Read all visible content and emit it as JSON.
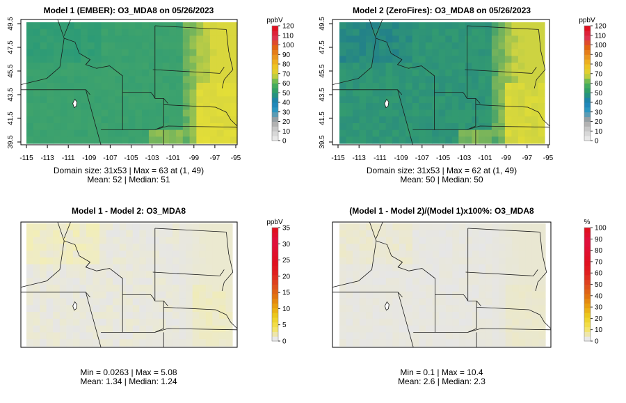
{
  "panels": [
    {
      "title": "Model 1 (EMBER): O3_MDA8 on 05/26/2023",
      "stats_line1": "Domain size: 31x53 | Max = 63 at (1, 49)",
      "stats_line2": "Mean: 52 |  Median: 51",
      "legend_unit": "ppbV",
      "legend_ticks": [
        "0",
        "10",
        "20",
        "30",
        "40",
        "50",
        "60",
        "70",
        "80",
        "90",
        "100",
        "110",
        "120"
      ],
      "x_ticks": [
        "-115",
        "-113",
        "-111",
        "-109",
        "-107",
        "-105",
        "-103",
        "-101",
        "-99",
        "-97",
        "-95"
      ],
      "y_ticks": [
        "39.5",
        "41.5",
        "43.5",
        "45.5",
        "47.5",
        "49.5"
      ],
      "colors": {
        "base": "#3fa36c",
        "north": "#2b9a77",
        "east": "#d9d73d",
        "hot": "#e8e135"
      }
    },
    {
      "title": "Model 2 (ZeroFires): O3_MDA8 on 05/26/2023",
      "stats_line1": "Domain size: 31x53 | Max = 62 at (1, 49)",
      "stats_line2": "Mean: 50 |  Median: 50",
      "legend_unit": "ppbV",
      "legend_ticks": [
        "0",
        "10",
        "20",
        "30",
        "40",
        "50",
        "60",
        "70",
        "80",
        "90",
        "100",
        "110",
        "120"
      ],
      "x_ticks": [
        "-115",
        "-113",
        "-111",
        "-109",
        "-107",
        "-105",
        "-103",
        "-101",
        "-99",
        "-97",
        "-95"
      ],
      "y_ticks": [
        "39.5",
        "41.5",
        "43.5",
        "45.5",
        "47.5",
        "49.5"
      ],
      "colors": {
        "base": "#339b70",
        "north": "#22808a",
        "east": "#cdd341",
        "hot": "#e6df33"
      }
    },
    {
      "title": "Model 1 - Model 2: O3_MDA8",
      "stats_line1": "Min = 0.0263 | Max = 5.08",
      "stats_line2": "Mean: 1.34 |  Median: 1.24",
      "legend_unit": "ppbV",
      "legend_ticks": [
        "0",
        "5",
        "10",
        "15",
        "20",
        "25",
        "30",
        "35"
      ],
      "x_ticks": [],
      "y_ticks": [],
      "colors": {
        "base": "#e6e6e6",
        "north": "#f3eeb5",
        "east": "#ebe9d0",
        "hot": "#f1ecb0"
      }
    },
    {
      "title": "(Model 1 - Model 2)/(Model 1)x100%: O3_MDA8",
      "stats_line1": "Min = 0.1 | Max = 10.4",
      "stats_line2": "Mean: 2.6 |  Median: 2.3",
      "legend_unit": "%",
      "legend_ticks": [
        "0",
        "10",
        "20",
        "30",
        "40",
        "50",
        "60",
        "70",
        "80",
        "90",
        "100"
      ],
      "x_ticks": [],
      "y_ticks": [],
      "colors": {
        "base": "#e6e6e6",
        "north": "#ede9c8",
        "east": "#e9e7d2",
        "hot": "#ede9c4"
      }
    }
  ],
  "chart_data": [
    {
      "type": "heatmap",
      "title": "Model 1 (EMBER): O3_MDA8 on 05/26/2023",
      "xlabel": "",
      "ylabel": "",
      "xlim": [
        -115,
        -95
      ],
      "ylim": [
        39.5,
        49.5
      ],
      "color_scale": {
        "unit": "ppbV",
        "min": 0,
        "max": 120
      },
      "summary": {
        "domain_size": "31x53",
        "max": 63,
        "max_at": [
          1,
          49
        ],
        "mean": 52,
        "median": 51
      }
    },
    {
      "type": "heatmap",
      "title": "Model 2 (ZeroFires): O3_MDA8 on 05/26/2023",
      "xlabel": "",
      "ylabel": "",
      "xlim": [
        -115,
        -95
      ],
      "ylim": [
        39.5,
        49.5
      ],
      "color_scale": {
        "unit": "ppbV",
        "min": 0,
        "max": 120
      },
      "summary": {
        "domain_size": "31x53",
        "max": 62,
        "max_at": [
          1,
          49
        ],
        "mean": 50,
        "median": 50
      }
    },
    {
      "type": "heatmap",
      "title": "Model 1 - Model 2: O3_MDA8",
      "color_scale": {
        "unit": "ppbV",
        "min": 0,
        "max": 35
      },
      "summary": {
        "min": 0.0263,
        "max": 5.08,
        "mean": 1.34,
        "median": 1.24
      }
    },
    {
      "type": "heatmap",
      "title": "(Model 1 - Model 2)/(Model 1)x100%: O3_MDA8",
      "color_scale": {
        "unit": "%",
        "min": 0,
        "max": 100
      },
      "summary": {
        "min": 0.1,
        "max": 10.4,
        "mean": 2.6,
        "median": 2.3
      }
    }
  ]
}
